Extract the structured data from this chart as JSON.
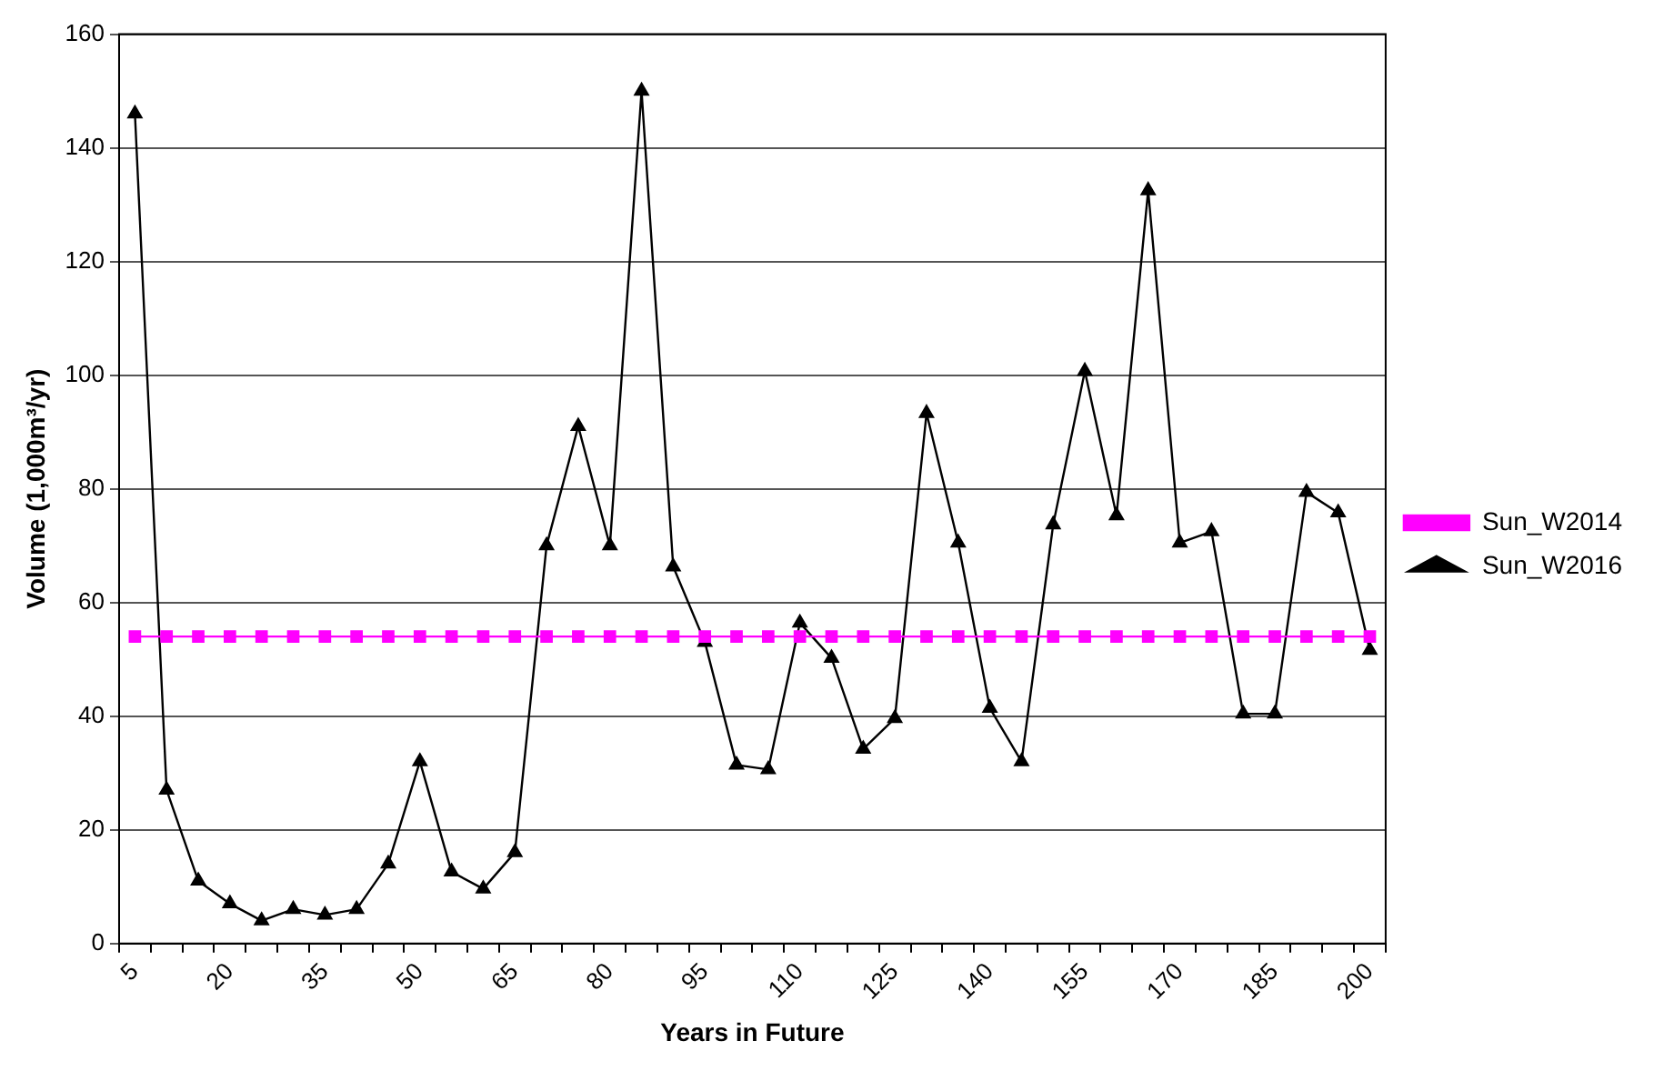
{
  "chart_data": {
    "type": "line",
    "xlabel": "Years in Future",
    "ylabel": "Volume (1,000m³/yr)",
    "categories": [
      "5",
      null,
      null,
      "20",
      null,
      null,
      "35",
      null,
      null,
      "50",
      null,
      null,
      "65",
      null,
      null,
      "80",
      null,
      null,
      "95",
      null,
      null,
      "110",
      null,
      null,
      "125",
      null,
      null,
      "140",
      null,
      null,
      "155",
      null,
      null,
      "170",
      null,
      null,
      "185",
      null,
      null,
      "200"
    ],
    "series": [
      {
        "name": "Sun_W2014",
        "color": "#ff00ff",
        "marker": "square",
        "values": [
          54,
          54,
          54,
          54,
          54,
          54,
          54,
          54,
          54,
          54,
          54,
          54,
          54,
          54,
          54,
          54,
          54,
          54,
          54,
          54,
          54,
          54,
          54,
          54,
          54,
          54,
          54,
          54,
          54,
          54,
          54,
          54,
          54,
          54,
          54,
          54,
          54,
          54,
          54,
          54
        ]
      },
      {
        "name": "Sun_W2016",
        "color": "#000000",
        "marker": "triangle",
        "values": [
          146,
          27,
          11,
          7,
          4,
          6,
          5,
          6,
          14,
          32,
          12.6,
          9.6,
          16,
          70,
          91,
          70,
          150,
          66.3,
          53,
          31.4,
          30.6,
          56.4,
          50.2,
          34.2,
          39.6,
          93.3,
          70.5,
          41.4,
          32,
          73.7,
          100.7,
          75.3,
          132.5,
          70.5,
          72.5,
          40.4,
          40.4,
          79.4,
          75.8,
          51.6
        ]
      }
    ],
    "ylim": [
      0,
      160
    ],
    "yticks": [
      0,
      20,
      40,
      60,
      80,
      100,
      120,
      140,
      160
    ],
    "grid": "y",
    "legend": "right"
  }
}
